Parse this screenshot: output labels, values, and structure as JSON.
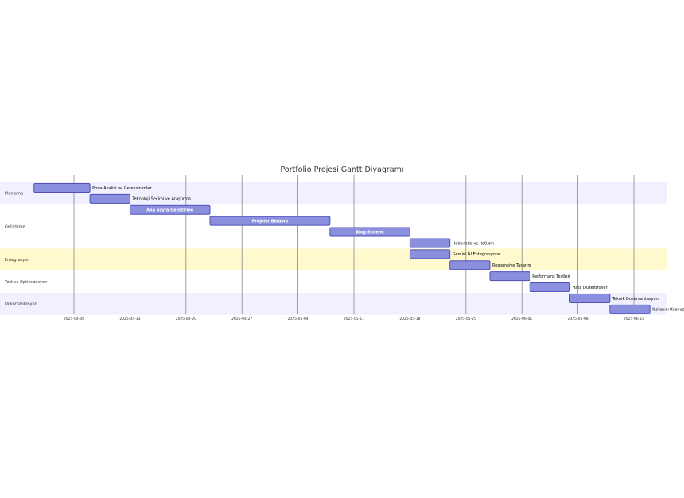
{
  "chart_data": {
    "type": "gantt",
    "title": "Portfolio Projesi Gantt Diyagramı",
    "x_ticks": [
      "2025-04-06",
      "2025-04-13",
      "2025-04-20",
      "2025-04-27",
      "2025-05-04",
      "2025-05-11",
      "2025-05-18",
      "2025-05-25",
      "2025-06-01",
      "2025-06-08",
      "2025-06-15"
    ],
    "x_range": [
      "2025-03-31",
      "2025-06-19"
    ],
    "grid": true,
    "sections": [
      {
        "name": "Planlama",
        "color": "#f0f0ff"
      },
      {
        "name": "Geliştirme",
        "color": "#ffffff"
      },
      {
        "name": "Entegrasyon",
        "color": "#fffacd"
      },
      {
        "name": "Test ve Optimizasyon",
        "color": "#ffffff"
      },
      {
        "name": "Dokümantasyon",
        "color": "#f0f0ff"
      }
    ],
    "tasks": [
      {
        "name": "Proje Analizi ve Gereksinimler",
        "section": "Planlama",
        "start": "2025-04-01",
        "end": "2025-04-08"
      },
      {
        "name": "Teknoloji Seçimi ve Araştırma",
        "section": "Planlama",
        "start": "2025-04-08",
        "end": "2025-04-13"
      },
      {
        "name": "Ana Sayfa Geliştirme",
        "section": "Geliştirme",
        "start": "2025-04-13",
        "end": "2025-04-23"
      },
      {
        "name": "Projeler Bölümü",
        "section": "Geliştirme",
        "start": "2025-04-23",
        "end": "2025-05-08"
      },
      {
        "name": "Blog Sistemi",
        "section": "Geliştirme",
        "start": "2025-05-08",
        "end": "2025-05-18"
      },
      {
        "name": "Hakkımda ve İletişim",
        "section": "Geliştirme",
        "start": "2025-05-18",
        "end": "2025-05-23"
      },
      {
        "name": "Gemini AI Entegrasyonu",
        "section": "Entegrasyon",
        "start": "2025-05-18",
        "end": "2025-05-23"
      },
      {
        "name": "Responsive Tasarım",
        "section": "Entegrasyon",
        "start": "2025-05-23",
        "end": "2025-05-28"
      },
      {
        "name": "Performans Testleri",
        "section": "Test ve Optimizasyon",
        "start": "2025-05-28",
        "end": "2025-06-02"
      },
      {
        "name": "Hata Düzeltmeleri",
        "section": "Test ve Optimizasyon",
        "start": "2025-06-02",
        "end": "2025-06-07"
      },
      {
        "name": "Teknik Dokümantasyon",
        "section": "Dokümantasyon",
        "start": "2025-06-07",
        "end": "2025-06-12"
      },
      {
        "name": "Kullanıcı Kılavuzu",
        "section": "Dokümantasyon",
        "start": "2025-06-12",
        "end": "2025-06-17"
      }
    ],
    "colors": {
      "bar_fill": "#8a90dd",
      "bar_stroke": "#534fbc",
      "grid": "#888888"
    }
  }
}
